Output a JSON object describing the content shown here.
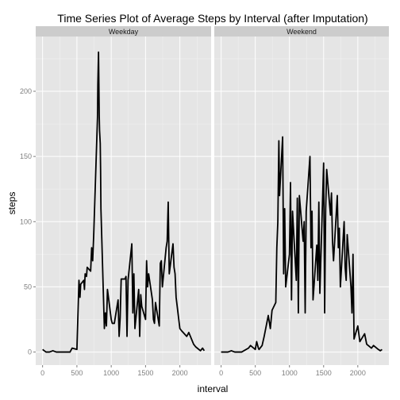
{
  "chart_data": {
    "type": "line",
    "title": "Time Series Plot of Average Steps by Interval (after Imputation)",
    "xlabel": "interval",
    "ylabel": "steps",
    "xlim": [
      -100,
      2455
    ],
    "ylim": [
      -10,
      242
    ],
    "x_ticks": [
      0,
      500,
      1000,
      1500,
      2000
    ],
    "y_ticks": [
      0,
      50,
      100,
      150,
      200
    ],
    "grid": true,
    "panel_background": "#e5e5e5",
    "strip_background": "#cccccc",
    "line_color": "#000000",
    "panels": [
      {
        "label": "Weekday",
        "series": [
          {
            "x": [
              0,
              50,
              100,
              150,
              200,
              300,
              400,
              430,
              500,
              530,
              545,
              555,
              600,
              610,
              620,
              640,
              650,
              700,
              715,
              730,
              745,
              800,
              805,
              815,
              825,
              830,
              840,
              845,
              850,
              900,
              915,
              930,
              945,
              1000,
              1015,
              1030,
              1045,
              1100,
              1115,
              1130,
              1145,
              1200,
              1215,
              1230,
              1245,
              1300,
              1315,
              1330,
              1345,
              1400,
              1415,
              1430,
              1445,
              1500,
              1515,
              1530,
              1545,
              1600,
              1615,
              1630,
              1645,
              1700,
              1715,
              1730,
              1745,
              1800,
              1815,
              1830,
              1845,
              1900,
              1915,
              1930,
              1945,
              2000,
              2030,
              2100,
              2130,
              2200,
              2230,
              2300,
              2330,
              2355
            ],
            "y": [
              2,
              0,
              0,
              1,
              0,
              0,
              0,
              3,
              2,
              55,
              42,
              52,
              55,
              48,
              60,
              58,
              65,
              62,
              80,
              70,
              90,
              180,
              205,
              230,
              182,
              170,
              160,
              140,
              110,
              18,
              30,
              20,
              48,
              25,
              22,
              22,
              22,
              40,
              12,
              26,
              56,
              56,
              58,
              12,
              55,
              83,
              30,
              60,
              18,
              48,
              12,
              44,
              35,
              25,
              70,
              50,
              60,
              40,
              25,
              22,
              38,
              20,
              68,
              70,
              50,
              80,
              85,
              115,
              60,
              83,
              65,
              60,
              42,
              18,
              16,
              12,
              15,
              6,
              4,
              1,
              3,
              1
            ]
          }
        ]
      },
      {
        "label": "Weekend",
        "series": [
          {
            "x": [
              0,
              50,
              100,
              150,
              200,
              300,
              400,
              430,
              500,
              520,
              545,
              555,
              600,
              630,
              660,
              690,
              720,
              745,
              800,
              815,
              830,
              845,
              855,
              900,
              915,
              930,
              945,
              1000,
              1015,
              1030,
              1045,
              1100,
              1115,
              1130,
              1145,
              1200,
              1215,
              1230,
              1245,
              1300,
              1315,
              1330,
              1345,
              1400,
              1415,
              1430,
              1445,
              1500,
              1515,
              1530,
              1545,
              1600,
              1615,
              1630,
              1645,
              1700,
              1715,
              1730,
              1745,
              1800,
              1815,
              1830,
              1845,
              1900,
              1915,
              1930,
              1945,
              2000,
              2030,
              2100,
              2130,
              2200,
              2230,
              2300,
              2330,
              2355
            ],
            "y": [
              0,
              0,
              0,
              1,
              0,
              0,
              3,
              5,
              2,
              8,
              3,
              2,
              5,
              12,
              20,
              28,
              18,
              32,
              38,
              80,
              100,
              162,
              120,
              165,
              60,
              110,
              50,
              75,
              130,
              40,
              108,
              55,
              118,
              30,
              120,
              85,
              100,
              30,
              108,
              150,
              80,
              108,
              40,
              82,
              55,
              115,
              45,
              145,
              30,
              110,
              140,
              105,
              122,
              85,
              70,
              120,
              80,
              95,
              50,
              100,
              65,
              55,
              90,
              50,
              30,
              75,
              10,
              20,
              8,
              14,
              6,
              3,
              5,
              2,
              1,
              2
            ]
          }
        ]
      }
    ]
  }
}
